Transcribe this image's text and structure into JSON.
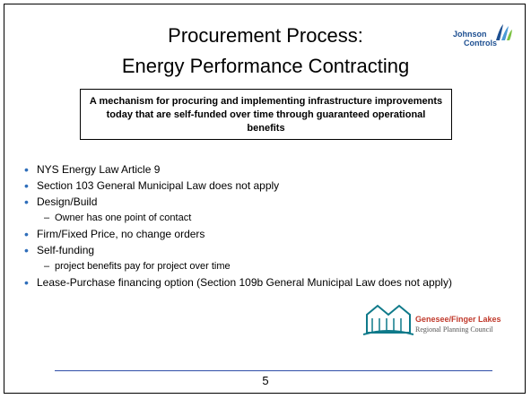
{
  "slide": {
    "title": [
      "Procurement Process:",
      "Energy Performance Contracting"
    ],
    "logo_top": [
      "Johnson",
      "Controls"
    ],
    "callout": "A mechanism for procuring and implementing infrastructure improvements today that are self-funded over time through guaranteed operational benefits",
    "bullets": [
      {
        "text": "NYS Energy Law Article 9"
      },
      {
        "text": "Section 103 General Municipal Law does not apply"
      },
      {
        "text": "Design/Build",
        "sub": "Owner has one point of contact"
      },
      {
        "text": "Firm/Fixed Price, no change orders"
      },
      {
        "text": "Self-funding",
        "sub": "project benefits pay for project over time"
      },
      {
        "text": "Lease-Purchase financing option (Section 109b General Municipal Law does not apply)"
      }
    ],
    "logo_bottom": [
      "Genesee/Finger Lakes",
      "Regional Planning Council"
    ],
    "page_number": "5"
  }
}
